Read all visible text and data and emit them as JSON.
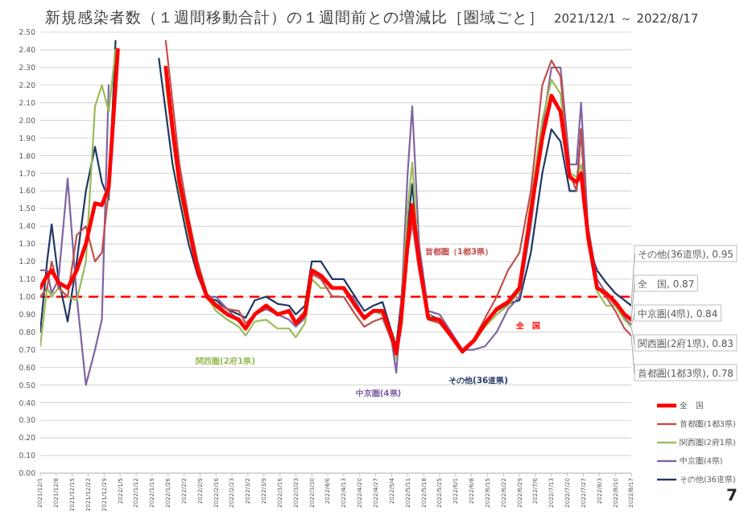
{
  "chart_data": {
    "type": "line",
    "title": "新規感染者数（１週間移動合計）の１週間前との増減比［圏域ごと］",
    "subtitle": "2021/12/1 ～ 2022/8/17",
    "x": [
      "2021-12-01",
      "2021-12-04",
      "2021-12-06",
      "2021-12-09",
      "2021-12-13",
      "2021-12-17",
      "2021-12-21",
      "2021-12-25",
      "2021-12-28",
      "2021-12-31",
      "2022-01-03",
      "2022-01-04",
      "2022-01-22",
      "2022-01-25",
      "2022-01-28",
      "2022-01-31",
      "2022-02-04",
      "2022-02-08",
      "2022-02-12",
      "2022-02-16",
      "2022-02-21",
      "2022-02-26",
      "2022-03-01",
      "2022-03-05",
      "2022-03-10",
      "2022-03-15",
      "2022-03-20",
      "2022-03-23",
      "2022-03-27",
      "2022-03-30",
      "2022-04-03",
      "2022-04-08",
      "2022-04-13",
      "2022-04-18",
      "2022-04-22",
      "2022-04-26",
      "2022-04-30",
      "2022-05-04",
      "2022-05-06",
      "2022-05-08",
      "2022-05-11",
      "2022-05-13",
      "2022-05-16",
      "2022-05-20",
      "2022-05-25",
      "2022-05-30",
      "2022-06-04",
      "2022-06-09",
      "2022-06-14",
      "2022-06-19",
      "2022-06-24",
      "2022-06-29",
      "2022-07-04",
      "2022-07-09",
      "2022-07-13",
      "2022-07-17",
      "2022-07-21",
      "2022-07-24",
      "2022-07-26",
      "2022-07-29",
      "2022-08-02",
      "2022-08-06",
      "2022-08-10",
      "2022-08-14",
      "2022-08-17"
    ],
    "series": [
      {
        "name": "全　国",
        "color": "#ff0000",
        "values": [
          1.05,
          1.12,
          1.15,
          1.08,
          1.05,
          1.15,
          1.3,
          1.53,
          1.52,
          1.62,
          2.2,
          2.4,
          null,
          2.3,
          1.95,
          1.65,
          1.4,
          1.15,
          1.0,
          0.95,
          0.9,
          0.87,
          0.82,
          0.9,
          0.95,
          0.9,
          0.92,
          0.85,
          0.9,
          1.15,
          1.12,
          1.05,
          1.05,
          0.95,
          0.88,
          0.92,
          0.92,
          0.78,
          0.68,
          0.85,
          1.3,
          1.52,
          1.2,
          0.88,
          0.87,
          0.78,
          0.69,
          0.75,
          0.85,
          0.93,
          0.97,
          1.05,
          1.48,
          1.9,
          2.14,
          2.05,
          1.68,
          1.65,
          1.7,
          1.35,
          1.05,
          1.02,
          0.97,
          0.9,
          0.87
        ]
      },
      {
        "name": "首都圏(1都3県)",
        "color": "#c0504d",
        "values": [
          1.0,
          1.05,
          1.2,
          1.05,
          1.0,
          1.35,
          1.4,
          1.2,
          1.25,
          1.6,
          2.2,
          2.4,
          null,
          2.45,
          2.1,
          1.75,
          1.45,
          1.2,
          1.02,
          0.96,
          0.93,
          0.92,
          0.85,
          0.9,
          0.94,
          0.9,
          0.92,
          0.86,
          0.92,
          1.13,
          1.1,
          1.0,
          1.0,
          0.9,
          0.83,
          0.86,
          0.88,
          0.75,
          0.67,
          0.85,
          1.25,
          1.42,
          1.15,
          0.87,
          0.85,
          0.77,
          0.7,
          0.76,
          0.88,
          1.0,
          1.15,
          1.25,
          1.6,
          2.2,
          2.34,
          2.25,
          1.7,
          1.6,
          1.95,
          1.35,
          1.05,
          1.0,
          0.92,
          0.82,
          0.78
        ]
      },
      {
        "name": "関西圏(2府1県)",
        "color": "#9bbb59",
        "values": [
          0.72,
          1.05,
          1.0,
          1.05,
          1.0,
          0.98,
          1.2,
          2.08,
          2.2,
          2.05,
          2.4,
          null,
          null,
          2.2,
          1.9,
          1.6,
          1.35,
          1.15,
          1.0,
          0.92,
          0.87,
          0.83,
          0.78,
          0.86,
          0.87,
          0.82,
          0.82,
          0.77,
          0.85,
          1.1,
          1.05,
          1.05,
          1.05,
          0.95,
          0.87,
          0.92,
          0.9,
          0.78,
          0.65,
          0.9,
          1.5,
          1.76,
          1.2,
          0.9,
          0.85,
          0.77,
          0.68,
          0.75,
          0.83,
          0.9,
          0.95,
          1.03,
          1.55,
          2.0,
          2.23,
          2.15,
          1.7,
          1.68,
          1.75,
          1.3,
          1.03,
          0.95,
          0.95,
          0.87,
          0.83
        ]
      },
      {
        "name": "中京圏(4県)",
        "color": "#8064a2",
        "values": [
          1.15,
          1.15,
          1.02,
          1.1,
          1.67,
          1.0,
          0.5,
          0.7,
          0.87,
          2.2,
          null,
          null,
          null,
          2.25,
          1.9,
          1.65,
          1.38,
          1.15,
          1.0,
          1.0,
          0.93,
          0.86,
          0.83,
          0.9,
          0.93,
          0.9,
          0.87,
          0.83,
          0.88,
          1.14,
          1.1,
          1.05,
          1.05,
          0.98,
          0.88,
          0.92,
          0.9,
          0.75,
          0.57,
          0.9,
          1.7,
          2.08,
          1.3,
          0.92,
          0.9,
          0.8,
          0.7,
          0.7,
          0.72,
          0.8,
          0.93,
          1.0,
          1.4,
          1.95,
          2.3,
          2.3,
          1.75,
          1.75,
          2.1,
          1.4,
          1.1,
          1.02,
          0.95,
          0.88,
          0.84
        ]
      },
      {
        "name": "その他(36道県)",
        "color": "#1f3864",
        "values": [
          0.8,
          1.2,
          1.41,
          1.1,
          0.86,
          1.2,
          1.6,
          1.85,
          1.65,
          1.55,
          2.45,
          null,
          2.35,
          2.05,
          1.75,
          1.55,
          1.3,
          1.12,
          1.0,
          0.98,
          0.93,
          0.9,
          0.88,
          0.98,
          1.0,
          0.96,
          0.95,
          0.9,
          0.95,
          1.2,
          1.2,
          1.1,
          1.1,
          1.0,
          0.92,
          0.95,
          0.97,
          0.8,
          0.72,
          0.95,
          1.4,
          1.64,
          1.2,
          0.9,
          0.87,
          0.78,
          0.69,
          0.75,
          0.85,
          0.92,
          0.96,
          0.98,
          1.25,
          1.7,
          1.95,
          1.88,
          1.6,
          1.6,
          1.95,
          1.3,
          1.15,
          1.08,
          1.02,
          0.98,
          0.95
        ]
      }
    ],
    "xlim": [
      "2021-12-01",
      "2022-08-17"
    ],
    "xticks": [
      {
        "value": "2021-12-01",
        "label": "2021/12/1"
      },
      {
        "value": "2021-12-08",
        "label": "2021/12/8"
      },
      {
        "value": "2021-12-15",
        "label": "2021/12/15"
      },
      {
        "value": "2021-12-22",
        "label": "2021/12/22"
      },
      {
        "value": "2021-12-29",
        "label": "2021/12/29"
      },
      {
        "value": "2022-01-05",
        "label": "2022/1/5"
      },
      {
        "value": "2022-01-12",
        "label": "2022/1/12"
      },
      {
        "value": "2022-01-19",
        "label": "2022/1/19"
      },
      {
        "value": "2022-01-26",
        "label": "2022/1/26"
      },
      {
        "value": "2022-02-02",
        "label": "2022/2/2"
      },
      {
        "value": "2022-02-09",
        "label": "2022/2/9"
      },
      {
        "value": "2022-02-16",
        "label": "2022/2/16"
      },
      {
        "value": "2022-02-23",
        "label": "2022/2/23"
      },
      {
        "value": "2022-03-02",
        "label": "2022/3/2"
      },
      {
        "value": "2022-03-09",
        "label": "2022/3/9"
      },
      {
        "value": "2022-03-16",
        "label": "2022/3/16"
      },
      {
        "value": "2022-03-23",
        "label": "2022/3/23"
      },
      {
        "value": "2022-03-30",
        "label": "2022/3/30"
      },
      {
        "value": "2022-04-06",
        "label": "2022/4/6"
      },
      {
        "value": "2022-04-13",
        "label": "2022/4/13"
      },
      {
        "value": "2022-04-20",
        "label": "2022/4/20"
      },
      {
        "value": "2022-04-27",
        "label": "2022/4/27"
      },
      {
        "value": "2022-05-04",
        "label": "2022/5/4"
      },
      {
        "value": "2022-05-11",
        "label": "2022/5/11"
      },
      {
        "value": "2022-05-18",
        "label": "2022/5/18"
      },
      {
        "value": "2022-05-25",
        "label": "2022/5/25"
      },
      {
        "value": "2022-06-01",
        "label": "2022/6/1"
      },
      {
        "value": "2022-06-08",
        "label": "2022/6/8"
      },
      {
        "value": "2022-06-15",
        "label": "2022/6/15"
      },
      {
        "value": "2022-06-22",
        "label": "2022/6/22"
      },
      {
        "value": "2022-06-29",
        "label": "2022/6/29"
      },
      {
        "value": "2022-07-06",
        "label": "2022/7/6"
      },
      {
        "value": "2022-07-13",
        "label": "2022/7/13"
      },
      {
        "value": "2022-07-20",
        "label": "2022/7/20"
      },
      {
        "value": "2022-07-27",
        "label": "2022/7/27"
      },
      {
        "value": "2022-08-03",
        "label": "2022/8/3"
      },
      {
        "value": "2022-08-10",
        "label": "2022/8/10"
      },
      {
        "value": "2022-08-17",
        "label": "2022/8/17"
      }
    ],
    "ylim": [
      0,
      2.5
    ],
    "yticks": [
      {
        "value": 0,
        "label": "0.00"
      },
      {
        "value": 0.1,
        "label": "0.10"
      },
      {
        "value": 0.2,
        "label": "0.20"
      },
      {
        "value": 0.3,
        "label": "0.30"
      },
      {
        "value": 0.4,
        "label": "0.40"
      },
      {
        "value": 0.5,
        "label": "0.50"
      },
      {
        "value": 0.6,
        "label": "0.60"
      },
      {
        "value": 0.7,
        "label": "0.70"
      },
      {
        "value": 0.8,
        "label": "0.80"
      },
      {
        "value": 0.9,
        "label": "0.90"
      },
      {
        "value": 1.0,
        "label": "1.00"
      },
      {
        "value": 1.1,
        "label": "1.10"
      },
      {
        "value": 1.2,
        "label": "1.20"
      },
      {
        "value": 1.3,
        "label": "1.30"
      },
      {
        "value": 1.4,
        "label": "1.40"
      },
      {
        "value": 1.5,
        "label": "1.50"
      },
      {
        "value": 1.6,
        "label": "1.60"
      },
      {
        "value": 1.7,
        "label": "1.70"
      },
      {
        "value": 1.8,
        "label": "1.80"
      },
      {
        "value": 1.9,
        "label": "1.90"
      },
      {
        "value": 2.0,
        "label": "2.00"
      },
      {
        "value": 2.1,
        "label": "2.10"
      },
      {
        "value": 2.2,
        "label": "2.20"
      },
      {
        "value": 2.3,
        "label": "2.30"
      },
      {
        "value": 2.4,
        "label": "2.40"
      },
      {
        "value": 2.5,
        "label": "2.50"
      }
    ],
    "grid": "y",
    "legend": "bottom right",
    "marker": "none",
    "line_style": "solid",
    "ref_lines": [
      {
        "axis": "y",
        "value": 1.0,
        "color": "#ff0000",
        "line_style": "dashed"
      }
    ],
    "annotations": [
      "全　国",
      "首都圏（1都3県）",
      "関西圏(2府1県)",
      "中京圏(4県)",
      "その他(36道県)",
      {
        "text": "その他(36道県), 0.95",
        "x": "2022-08-17",
        "y": 0.95
      },
      {
        "text": "全　国, 0.87",
        "x": "2022-08-17",
        "y": 0.87
      },
      {
        "text": "中京圏(4県), 0.84",
        "x": "2022-08-17",
        "y": 0.84
      },
      {
        "text": "関西圏(2府1県), 0.83",
        "x": "2022-08-17",
        "y": 0.83
      },
      {
        "text": "首都圏(1都3県), 0.78",
        "x": "2022-08-17",
        "y": 0.78
      },
      "7"
    ]
  }
}
